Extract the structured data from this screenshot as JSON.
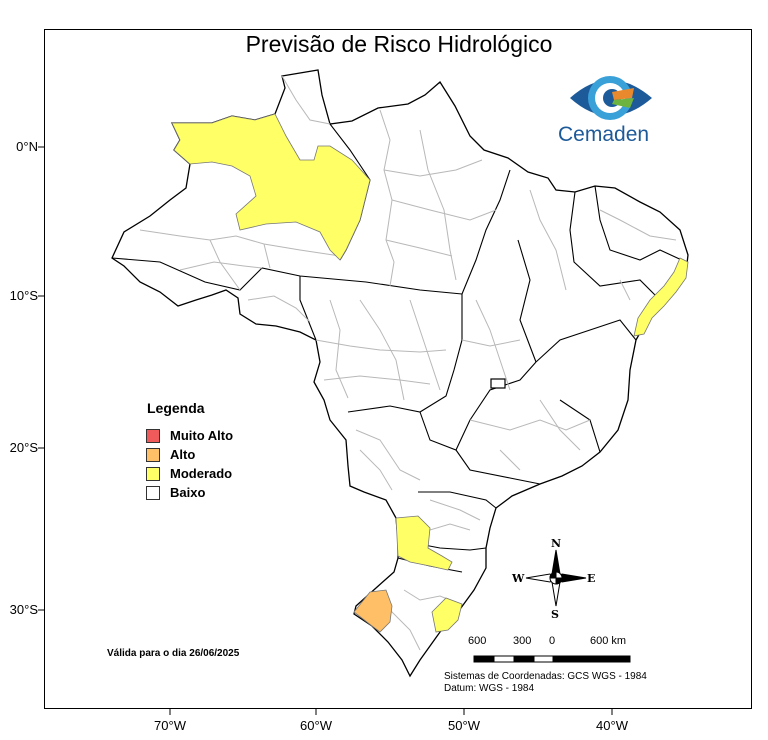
{
  "title": "Previsão de Risco Hidrológico",
  "logo": {
    "text": "Cemaden",
    "icon": "eye-logo-icon",
    "colors": {
      "blue": "#1d5a9a",
      "cyan": "#3aa0d8",
      "orange": "#e8892e",
      "green": "#6cb33f"
    }
  },
  "axes": {
    "y_ticks": [
      "0°N",
      "10°S",
      "20°S",
      "30°S"
    ],
    "x_ticks": [
      "70°W",
      "60°W",
      "50°W",
      "40°W"
    ]
  },
  "legend": {
    "title": "Legenda",
    "items": [
      {
        "label": "Muito Alto",
        "color": "#f05a5a"
      },
      {
        "label": "Alto",
        "color": "#ffbf66"
      },
      {
        "label": "Moderado",
        "color": "#ffff66"
      },
      {
        "label": "Baixo",
        "color": "#ffffff"
      }
    ]
  },
  "valid_for": "Válida para o dia 26/06/2025",
  "scale_bar": {
    "labels": [
      "600",
      "300",
      "0",
      "600 km"
    ]
  },
  "coordinates": {
    "system": "Sistemas de Coordenadas: GCS WGS - 1984",
    "datum": "Datum: WGS - 1984"
  },
  "compass": {
    "n": "N",
    "s": "S",
    "e": "E",
    "w": "W"
  }
}
